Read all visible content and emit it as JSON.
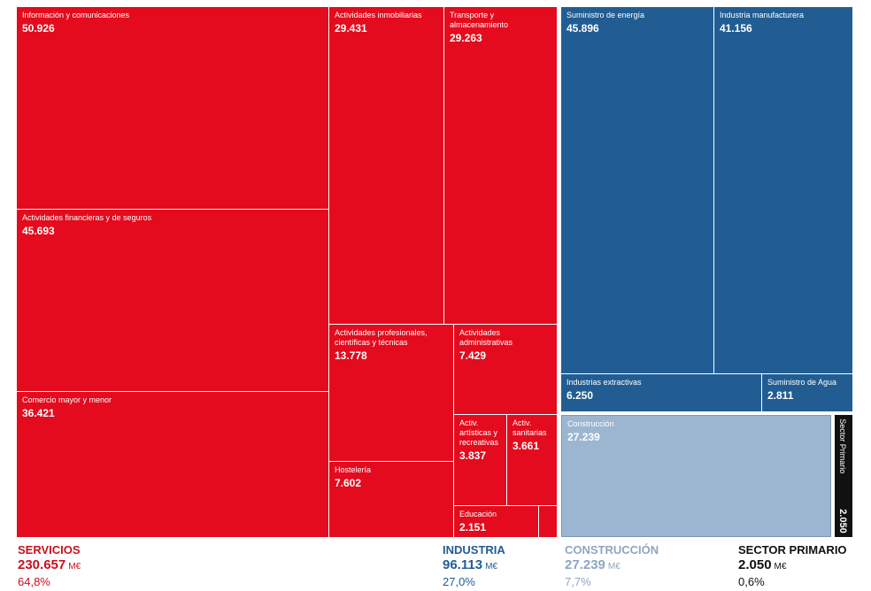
{
  "colors": {
    "servicios": "#e30b1d",
    "industria": "#215d92",
    "construccion": "#9cb6d1",
    "primario": "#111111"
  },
  "chart_data": {
    "type": "treemap",
    "unit": "M€",
    "sectors": [
      {
        "name": "SERVICIOS",
        "total": "230.657",
        "pct": "64,8%",
        "color": "#e30b1d",
        "items": [
          {
            "label": "Información y comunicaciones",
            "value": 50926,
            "display": "50.926"
          },
          {
            "label": "Actividades financieras y de seguros",
            "value": 45693,
            "display": "45.693"
          },
          {
            "label": "Comercio mayor y menor",
            "value": 36421,
            "display": "36.421"
          },
          {
            "label": "Actividades inmobiliarias",
            "value": 29431,
            "display": "29.431"
          },
          {
            "label": "Transporte y almacenamiento",
            "value": 29263,
            "display": "29.263"
          },
          {
            "label": "Actividades profesionales, científicas y técnicas",
            "value": 13778,
            "display": "13.778"
          },
          {
            "label": "Actividades administrativas",
            "value": 7429,
            "display": "7.429"
          },
          {
            "label": "Hostelería",
            "value": 7602,
            "display": "7.602"
          },
          {
            "label": "Activ. artísticas y recreativas",
            "value": 3837,
            "display": "3.837"
          },
          {
            "label": "Activ. sanitarias",
            "value": 3661,
            "display": "3.661"
          },
          {
            "label": "Educación",
            "value": 2151,
            "display": "2.151"
          },
          {
            "label": "",
            "value": 465,
            "display": ""
          }
        ]
      },
      {
        "name": "INDUSTRIA",
        "total": "96.113",
        "pct": "27,0%",
        "color": "#215d92",
        "items": [
          {
            "label": "Suministro de energía",
            "value": 45896,
            "display": "45.896"
          },
          {
            "label": "Industria manufacturera",
            "value": 41156,
            "display": "41.156"
          },
          {
            "label": "Industrias extractivas",
            "value": 6250,
            "display": "6.250"
          },
          {
            "label": "Suministro de Agua",
            "value": 2811,
            "display": "2.811"
          }
        ]
      },
      {
        "name": "CONSTRUCCIÓN",
        "total": "27.239",
        "pct": "7,7%",
        "color": "#9cb6d1",
        "items": [
          {
            "label": "Construcción",
            "value": 27239,
            "display": "27.239"
          }
        ]
      },
      {
        "name": "SECTOR PRIMARIO",
        "total": "2.050",
        "pct": "0,6%",
        "color": "#111111",
        "items": [
          {
            "label": "Sector Primario",
            "value": 2050,
            "display": "2.050"
          }
        ]
      }
    ]
  }
}
